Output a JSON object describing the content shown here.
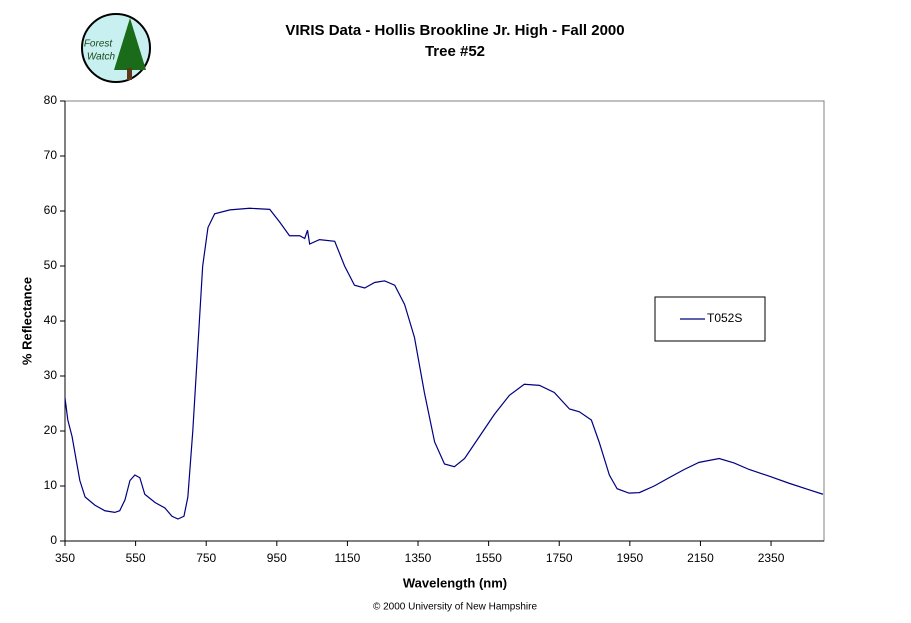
{
  "logo": {
    "line1": "Forest",
    "line2": "Watch"
  },
  "chart_data": {
    "type": "line",
    "title": "VIRIS Data - Hollis Brookline Jr. High - Fall 2000",
    "subtitle": "Tree #52",
    "x_label": "Wavelength (nm)",
    "y_label": "% Reflectance",
    "footer": "© 2000 University of New Hampshire",
    "xlim": [
      350,
      2500
    ],
    "xticks": [
      350,
      550,
      750,
      950,
      1150,
      1350,
      1550,
      1750,
      1950,
      2150,
      2350
    ],
    "ylim": [
      0,
      80
    ],
    "yticks": [
      0,
      10,
      20,
      30,
      40,
      50,
      60,
      70,
      80
    ],
    "legend": "right",
    "x": [
      350,
      358,
      370,
      381,
      392,
      407,
      435,
      463,
      491,
      505,
      520,
      534,
      548,
      562,
      576,
      605,
      633,
      653,
      670,
      687,
      698,
      712,
      726,
      740,
      755,
      774,
      817,
      873,
      930,
      958,
      986,
      1015,
      1029,
      1037,
      1043,
      1071,
      1114,
      1142,
      1170,
      1199,
      1227,
      1255,
      1284,
      1312,
      1340,
      1368,
      1397,
      1425,
      1453,
      1482,
      1524,
      1566,
      1609,
      1651,
      1694,
      1736,
      1779,
      1807,
      1841,
      1863,
      1892,
      1914,
      1948,
      1977,
      2019,
      2061,
      2104,
      2146,
      2203,
      2245,
      2288,
      2344,
      2401,
      2458,
      2497
    ],
    "series": [
      {
        "name": "T052S",
        "color": "#000080",
        "values": [
          26,
          22,
          19,
          15,
          11,
          8,
          6.5,
          5.5,
          5.2,
          5.5,
          7.5,
          11,
          12,
          11.5,
          8.5,
          7,
          6,
          4.5,
          4,
          4.5,
          8,
          20,
          35,
          50,
          57,
          59.5,
          60.2,
          60.5,
          60.3,
          58,
          55.5,
          55.5,
          55,
          56.5,
          54,
          54.8,
          54.5,
          50,
          46.5,
          46,
          47,
          47.3,
          46.5,
          43,
          37,
          27,
          18,
          14,
          13.5,
          15,
          19,
          23,
          26.5,
          28.5,
          28.3,
          27,
          24,
          23.5,
          22,
          18,
          12,
          9.5,
          8.7,
          8.8,
          10,
          11.5,
          13,
          14.3,
          15,
          14.2,
          13,
          11.8,
          10.5,
          9.3,
          8.5
        ]
      }
    ]
  }
}
